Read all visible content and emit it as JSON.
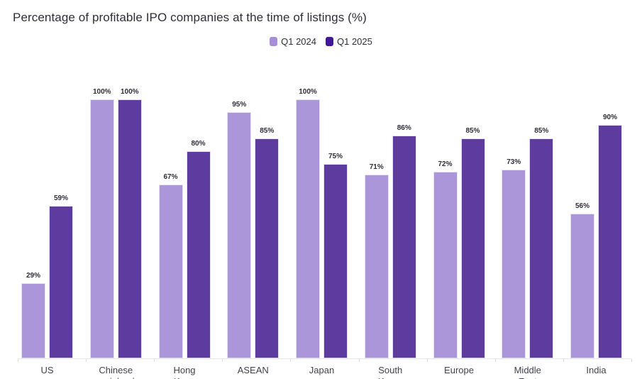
{
  "title": "Percentage of profitable IPO companies at the time of listings (%)",
  "legend": [
    {
      "label": "Q1 2024",
      "color": "#a78fd8"
    },
    {
      "label": "Q1 2025",
      "color": "#41189b"
    }
  ],
  "chart_data": {
    "type": "bar",
    "title": "Percentage of profitable IPO companies at the time of listings (%)",
    "categories": [
      "US",
      "Chinese mainland",
      "Hong Kong",
      "ASEAN",
      "Japan",
      "South Korea",
      "Europe",
      "Middle East",
      "India"
    ],
    "series": [
      {
        "name": "Q1 2024",
        "color": "#ab96d9",
        "values": [
          29,
          100,
          67,
          95,
          100,
          71,
          72,
          73,
          56
        ]
      },
      {
        "name": "Q1 2025",
        "color": "#5e3b9e",
        "values": [
          59,
          100,
          80,
          85,
          75,
          86,
          85,
          85,
          90
        ]
      }
    ],
    "value_suffix": "%",
    "xlabel": "",
    "ylabel": "",
    "ylim": [
      0,
      100
    ],
    "grid": false,
    "legend_position": "top-center",
    "value_labels": true
  }
}
